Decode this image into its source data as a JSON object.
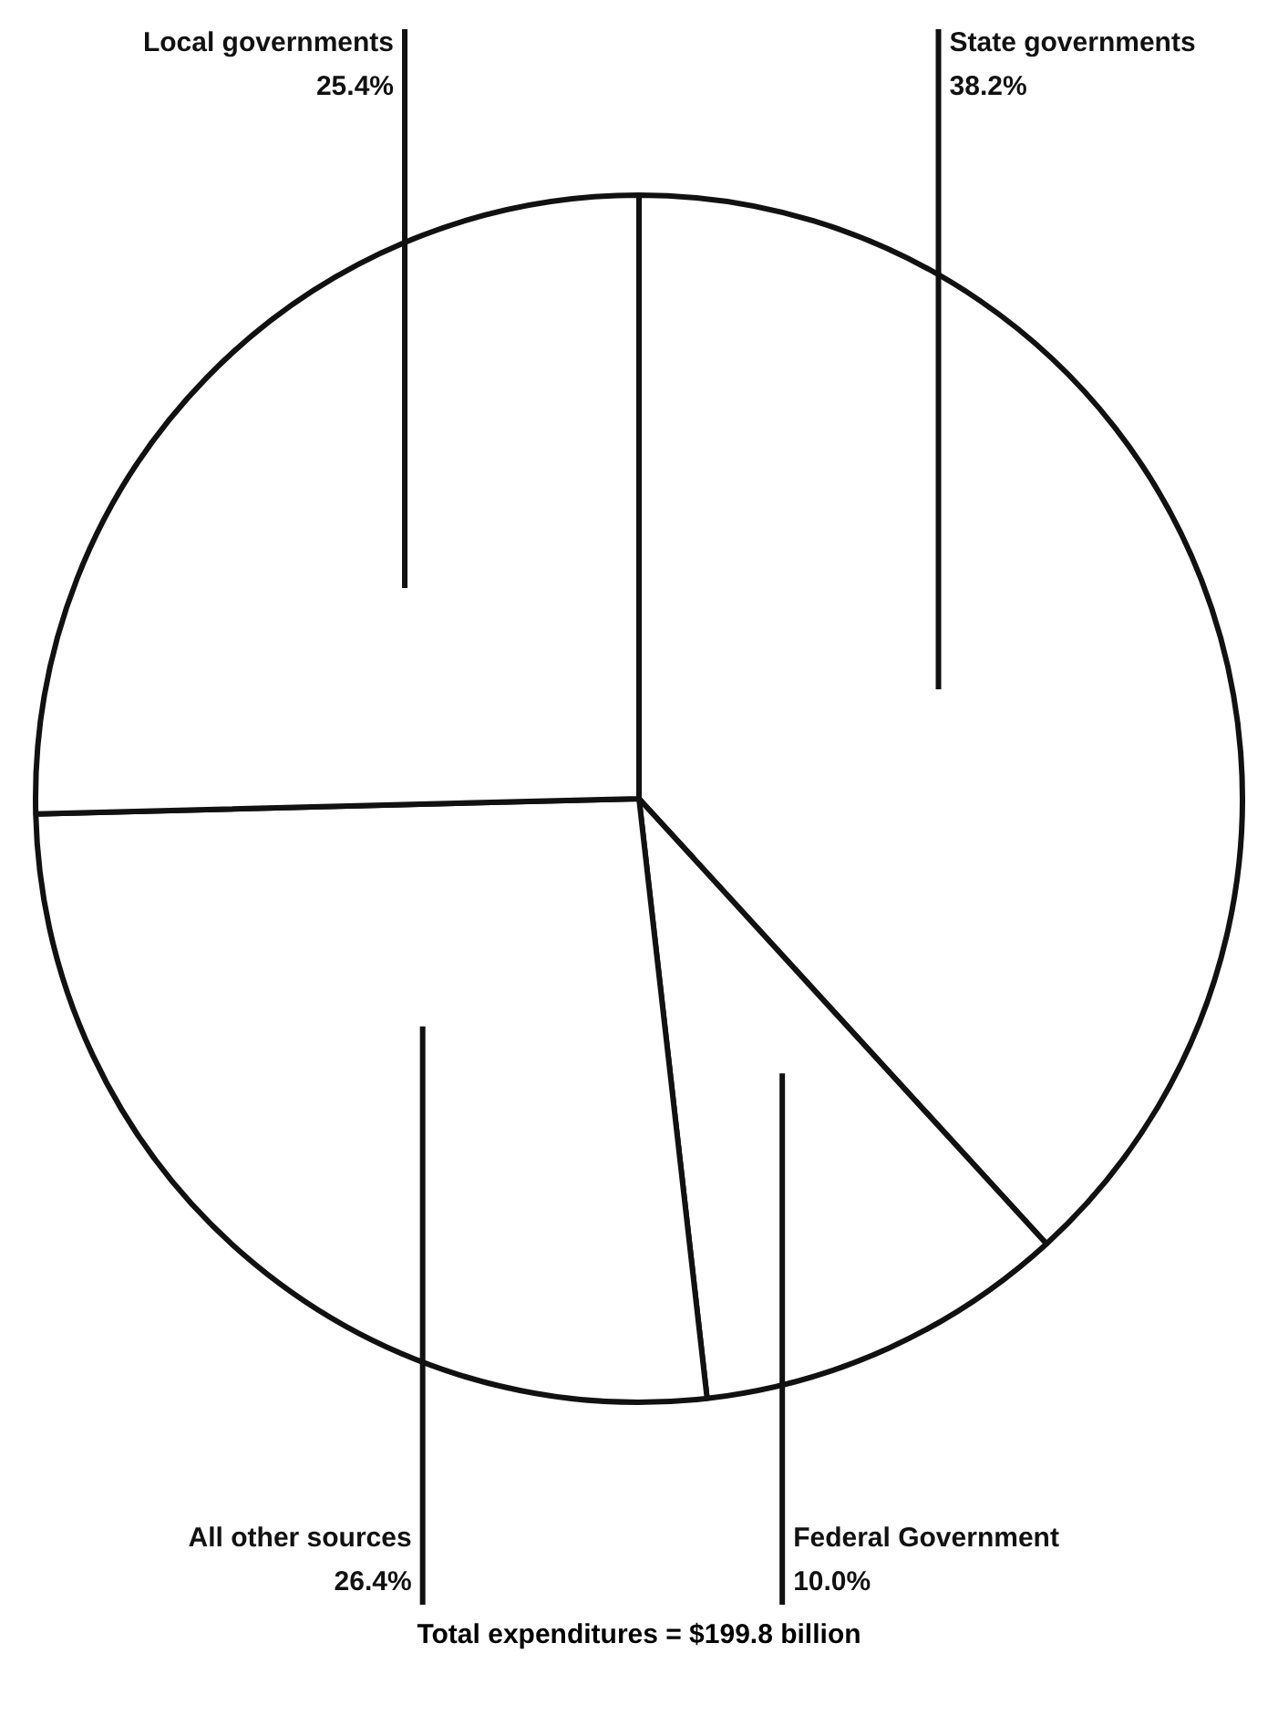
{
  "chart_data": {
    "type": "pie",
    "categories": [
      "State governments",
      "Federal Government",
      "All other sources",
      "Local governments"
    ],
    "values": [
      38.2,
      10.0,
      26.4,
      25.4
    ],
    "value_labels": [
      "38.2%",
      "10.0%",
      "26.4%",
      "25.4%"
    ],
    "colors": [
      "#ffffff",
      "#ffffff",
      "#ffffff",
      "#ffffff"
    ],
    "legend": false,
    "annotations": [
      "Total expenditures = $199.8 billion"
    ]
  }
}
